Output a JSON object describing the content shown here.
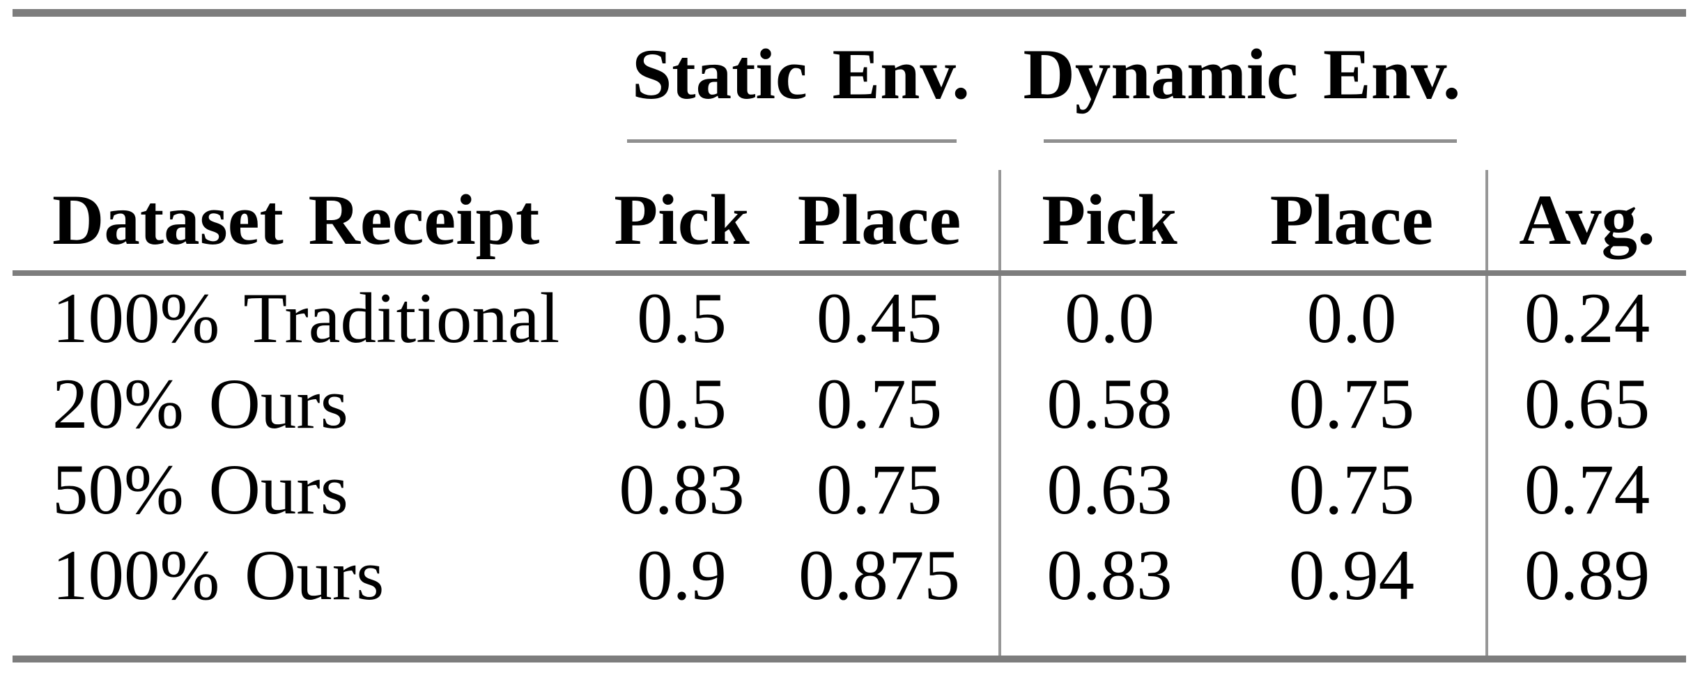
{
  "chart_data": {
    "type": "table",
    "column_groups": [
      {
        "label": "Static Env.",
        "spans_columns": [
          "Pick",
          "Place"
        ]
      },
      {
        "label": "Dynamic Env.",
        "spans_columns": [
          "Pick",
          "Place"
        ]
      }
    ],
    "columns": [
      "Dataset Receipt",
      "Pick",
      "Place",
      "Pick",
      "Place",
      "Avg."
    ],
    "rows": [
      {
        "cells": [
          "100% Traditional",
          "0.5",
          "0.45",
          "0.0",
          "0.0",
          "0.24"
        ]
      },
      {
        "cells": [
          "20% Ours",
          "0.5",
          "0.75",
          "0.58",
          "0.75",
          "0.65"
        ]
      },
      {
        "cells": [
          "50% Ours",
          "0.83",
          "0.75",
          "0.63",
          "0.75",
          "0.74"
        ]
      },
      {
        "cells": [
          "100% Ours",
          "0.9",
          "0.875",
          "0.83",
          "0.94",
          "0.89"
        ]
      }
    ],
    "layout_hints": {
      "grid": "booktabs rules only, no full vertical grid",
      "vertical_separators_after_columns": [
        "Place (Static)",
        "Place (Dynamic)"
      ],
      "alignment": {
        "first_column": "left",
        "value_columns": "center"
      }
    },
    "colors": {
      "text": "#000000",
      "rule_heavy": "#7d7d7d",
      "rule_light": "#8f8f8f",
      "vertical_bar": "#979797",
      "background": "#ffffff"
    }
  }
}
